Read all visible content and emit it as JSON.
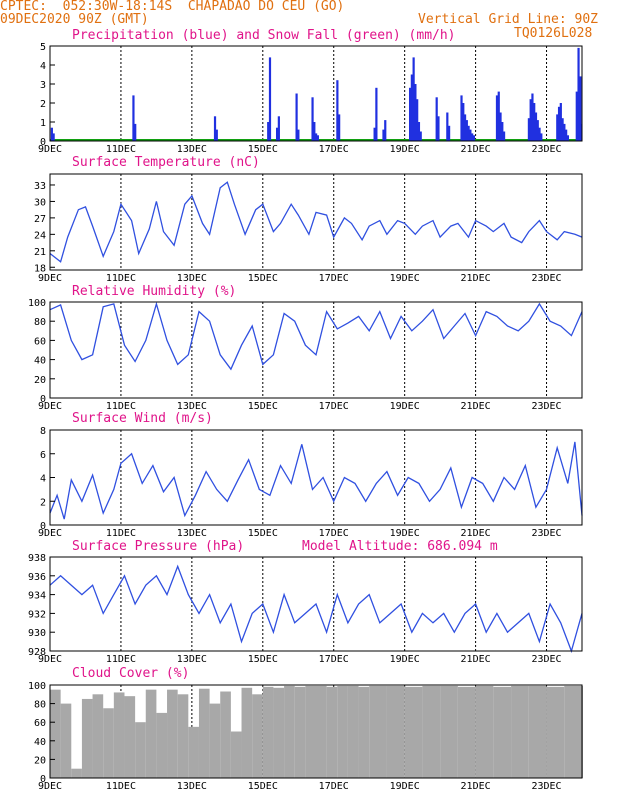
{
  "header": {
    "line1": "CPTEC:  052:30W-18:14S  CHAPADAO DO CEU (GO)",
    "line2_left": "09DEC2020 90Z (GMT)",
    "line2_right": "Vertical Grid Line: 90Z",
    "code": "TQ0126L028"
  },
  "colors": {
    "header": "#e07010",
    "title": "#e0148a",
    "line": "#3050e0",
    "precip": "#2030e0",
    "snow": "#10a010",
    "cloud": "#a8a8a8",
    "grid": "#000000"
  },
  "x_ticks": [
    "9DEC",
    "11DEC",
    "13DEC",
    "15DEC",
    "17DEC",
    "19DEC",
    "21DEC",
    "23DEC"
  ],
  "panels": [
    {
      "id": "precip",
      "title": "Precipitation (blue) and Snow Fall (green) (mm/h)",
      "ylim": [
        0,
        5
      ],
      "yticks": [
        0,
        1,
        2,
        3,
        4,
        5
      ]
    },
    {
      "id": "temp",
      "title": "Surface Temperature (nC)",
      "ylim": [
        17.5,
        35
      ],
      "yticks": [
        18,
        21,
        24,
        27,
        30,
        33
      ]
    },
    {
      "id": "rh",
      "title": "Relative Humidity (%)",
      "ylim": [
        0,
        100
      ],
      "yticks": [
        0,
        20,
        40,
        60,
        80,
        100
      ]
    },
    {
      "id": "wind",
      "title": "Surface Wind (m/s)",
      "ylim": [
        0,
        8
      ],
      "yticks": [
        0,
        2,
        4,
        6,
        8
      ]
    },
    {
      "id": "pres",
      "title": "Surface Pressure (hPa)",
      "extra": "Model Altitude: 686.094 m",
      "ylim": [
        928,
        938
      ],
      "yticks": [
        928,
        930,
        932,
        934,
        936,
        938
      ]
    },
    {
      "id": "cloud",
      "title": "Cloud Cover (%)",
      "ylim": [
        0,
        100
      ],
      "yticks": [
        0,
        20,
        40,
        60,
        80,
        100
      ]
    }
  ],
  "chart_data": [
    {
      "type": "bar",
      "title": "Precipitation (blue) and Snow Fall (green) (mm/h)",
      "x_unit": "days since 9DEC",
      "x": [
        0.05,
        0.1,
        2.35,
        2.4,
        4.65,
        4.7,
        6.15,
        6.2,
        6.4,
        6.45,
        6.95,
        7.0,
        7.4,
        7.45,
        7.5,
        7.55,
        8.1,
        8.15,
        9.15,
        9.2,
        9.4,
        9.45,
        10.15,
        10.2,
        10.25,
        10.3,
        10.35,
        10.4,
        10.45,
        10.9,
        10.95,
        11.2,
        11.25,
        11.6,
        11.65,
        11.7,
        11.75,
        11.8,
        11.85,
        11.9,
        11.95,
        12.6,
        12.65,
        12.7,
        12.75,
        12.8,
        13.5,
        13.55,
        13.6,
        13.65,
        13.7,
        13.75,
        13.8,
        13.85,
        14.3,
        14.35,
        14.4,
        14.45,
        14.5,
        14.55,
        14.6,
        14.85,
        14.9,
        14.95,
        14.98
      ],
      "values": [
        0.7,
        0.4,
        2.4,
        0.9,
        1.3,
        0.6,
        1.0,
        4.4,
        0.7,
        1.3,
        2.5,
        0.6,
        2.3,
        1.0,
        0.4,
        0.3,
        3.2,
        1.4,
        0.7,
        2.8,
        0.6,
        1.1,
        2.8,
        3.5,
        4.4,
        3.0,
        2.2,
        1.0,
        0.5,
        2.3,
        1.3,
        1.5,
        0.8,
        2.4,
        2.0,
        1.4,
        1.1,
        0.8,
        0.6,
        0.4,
        0.3,
        2.4,
        2.6,
        1.5,
        1.0,
        0.5,
        1.2,
        2.2,
        2.5,
        2.0,
        1.5,
        1.1,
        0.7,
        0.4,
        1.4,
        1.8,
        2.0,
        1.2,
        0.9,
        0.6,
        0.3,
        2.6,
        4.9,
        3.4,
        0.9
      ],
      "xlim": [
        0,
        15
      ],
      "ylim": [
        0,
        5
      ]
    },
    {
      "type": "line",
      "title": "Surface Temperature (nC)",
      "x_unit": "days since 9DEC",
      "x": [
        0,
        0.3,
        0.5,
        0.8,
        1.0,
        1.2,
        1.5,
        1.8,
        2.0,
        2.3,
        2.5,
        2.8,
        3.0,
        3.2,
        3.5,
        3.8,
        4.0,
        4.3,
        4.5,
        4.8,
        5.0,
        5.2,
        5.5,
        5.8,
        6.0,
        6.3,
        6.5,
        6.8,
        7.0,
        7.3,
        7.5,
        7.8,
        8.0,
        8.3,
        8.5,
        8.8,
        9.0,
        9.3,
        9.5,
        9.8,
        10.0,
        10.3,
        10.5,
        10.8,
        11.0,
        11.3,
        11.5,
        11.8,
        12.0,
        12.3,
        12.5,
        12.8,
        13.0,
        13.3,
        13.5,
        13.8,
        14.0,
        14.3,
        14.5,
        14.8,
        15.0
      ],
      "values": [
        20.5,
        19.0,
        23.5,
        28.5,
        29.0,
        25.5,
        20.0,
        24.5,
        29.5,
        26.5,
        20.5,
        25.0,
        30.0,
        24.5,
        22.0,
        29.5,
        31.0,
        26.0,
        24.0,
        32.5,
        33.5,
        29.5,
        24.0,
        28.5,
        29.5,
        24.5,
        26.0,
        29.5,
        27.5,
        24.0,
        28.0,
        27.5,
        23.5,
        27.0,
        26.0,
        23.0,
        25.5,
        26.5,
        24.0,
        26.5,
        26.0,
        24.0,
        25.5,
        26.5,
        23.5,
        25.5,
        26.0,
        23.5,
        26.5,
        25.5,
        24.5,
        26.0,
        23.5,
        22.5,
        24.5,
        26.5,
        24.5,
        23.0,
        24.5,
        24.0,
        23.5
      ],
      "xlim": [
        0,
        15
      ],
      "ylim": [
        17.5,
        35
      ]
    },
    {
      "type": "line",
      "title": "Relative Humidity (%)",
      "x_unit": "days since 9DEC",
      "x": [
        0,
        0.3,
        0.6,
        0.9,
        1.2,
        1.5,
        1.8,
        2.1,
        2.4,
        2.7,
        3.0,
        3.3,
        3.6,
        3.9,
        4.2,
        4.5,
        4.8,
        5.1,
        5.4,
        5.7,
        6.0,
        6.3,
        6.6,
        6.9,
        7.2,
        7.5,
        7.8,
        8.1,
        8.4,
        8.7,
        9.0,
        9.3,
        9.6,
        9.9,
        10.2,
        10.5,
        10.8,
        11.1,
        11.4,
        11.7,
        12.0,
        12.3,
        12.6,
        12.9,
        13.2,
        13.5,
        13.8,
        14.1,
        14.4,
        14.7,
        15.0
      ],
      "values": [
        92,
        97,
        60,
        40,
        45,
        95,
        98,
        55,
        38,
        60,
        98,
        60,
        35,
        45,
        90,
        80,
        45,
        30,
        55,
        75,
        35,
        45,
        88,
        80,
        55,
        45,
        90,
        72,
        78,
        85,
        70,
        90,
        62,
        85,
        70,
        80,
        92,
        62,
        75,
        88,
        65,
        90,
        85,
        75,
        70,
        80,
        98,
        80,
        75,
        65,
        90
      ],
      "xlim": [
        0,
        15
      ],
      "ylim": [
        0,
        100
      ]
    },
    {
      "type": "line",
      "title": "Surface Wind (m/s)",
      "x_unit": "days since 9DEC",
      "x": [
        0,
        0.2,
        0.4,
        0.6,
        0.9,
        1.2,
        1.5,
        1.8,
        2.0,
        2.3,
        2.6,
        2.9,
        3.2,
        3.5,
        3.8,
        4.1,
        4.4,
        4.7,
        5.0,
        5.3,
        5.6,
        5.9,
        6.2,
        6.5,
        6.8,
        7.1,
        7.4,
        7.7,
        8.0,
        8.3,
        8.6,
        8.9,
        9.2,
        9.5,
        9.8,
        10.1,
        10.4,
        10.7,
        11.0,
        11.3,
        11.6,
        11.9,
        12.2,
        12.5,
        12.8,
        13.1,
        13.4,
        13.7,
        14.0,
        14.3,
        14.6,
        14.8,
        15.0
      ],
      "values": [
        1.0,
        2.5,
        0.5,
        3.8,
        2.0,
        4.2,
        1.0,
        3.0,
        5.2,
        6.0,
        3.5,
        5.0,
        2.8,
        4.0,
        0.8,
        2.5,
        4.5,
        3.0,
        2.0,
        3.8,
        5.5,
        3.0,
        2.5,
        5.0,
        3.5,
        6.8,
        3.0,
        4.0,
        2.0,
        4.0,
        3.5,
        2.0,
        3.5,
        4.5,
        2.5,
        4.0,
        3.5,
        2.0,
        3.0,
        4.8,
        1.5,
        4.0,
        3.5,
        2.0,
        4.0,
        3.0,
        5.0,
        1.5,
        3.0,
        6.5,
        3.5,
        7.0,
        0.8
      ],
      "xlim": [
        0,
        15
      ],
      "ylim": [
        0,
        8
      ]
    },
    {
      "type": "line",
      "title": "Surface Pressure (hPa)",
      "x_unit": "days since 9DEC",
      "x": [
        0,
        0.3,
        0.6,
        0.9,
        1.2,
        1.5,
        1.8,
        2.1,
        2.4,
        2.7,
        3.0,
        3.3,
        3.6,
        3.9,
        4.2,
        4.5,
        4.8,
        5.1,
        5.4,
        5.7,
        6.0,
        6.3,
        6.6,
        6.9,
        7.2,
        7.5,
        7.8,
        8.1,
        8.4,
        8.7,
        9.0,
        9.3,
        9.6,
        9.9,
        10.2,
        10.5,
        10.8,
        11.1,
        11.4,
        11.7,
        12.0,
        12.3,
        12.6,
        12.9,
        13.2,
        13.5,
        13.8,
        14.1,
        14.4,
        14.7,
        15.0
      ],
      "values": [
        935,
        936,
        935,
        934,
        935,
        932,
        934,
        936,
        933,
        935,
        936,
        934,
        937,
        934,
        932,
        934,
        931,
        933,
        929,
        932,
        933,
        930,
        934,
        931,
        932,
        933,
        930,
        934,
        931,
        933,
        934,
        931,
        932,
        933,
        930,
        932,
        931,
        932,
        930,
        932,
        933,
        930,
        932,
        930,
        931,
        932,
        929,
        933,
        931,
        928,
        932
      ],
      "xlim": [
        0,
        15
      ],
      "ylim": [
        928,
        938
      ]
    },
    {
      "type": "area",
      "title": "Cloud Cover (%)",
      "x_unit": "days since 9DEC",
      "x": [
        0,
        0.3,
        0.6,
        0.9,
        1.2,
        1.5,
        1.8,
        2.1,
        2.4,
        2.7,
        3.0,
        3.3,
        3.6,
        3.9,
        4.2,
        4.5,
        4.8,
        5.1,
        5.4,
        5.7,
        6.0,
        6.3,
        6.6,
        6.9,
        7.2,
        7.5,
        7.8,
        8.1,
        8.4,
        8.7,
        9.0,
        9.5,
        10.0,
        10.5,
        11.0,
        11.5,
        12.0,
        12.5,
        13.0,
        13.5,
        14.0,
        14.5,
        15.0
      ],
      "values": [
        95,
        80,
        10,
        85,
        90,
        75,
        92,
        88,
        60,
        95,
        70,
        95,
        90,
        55,
        96,
        80,
        93,
        50,
        97,
        90,
        98,
        97,
        99,
        98,
        99,
        99,
        98,
        99,
        99,
        98,
        99,
        99,
        98,
        99,
        99,
        98,
        99,
        98,
        99,
        99,
        98,
        99,
        99
      ],
      "xlim": [
        0,
        15
      ],
      "ylim": [
        0,
        100
      ]
    }
  ]
}
